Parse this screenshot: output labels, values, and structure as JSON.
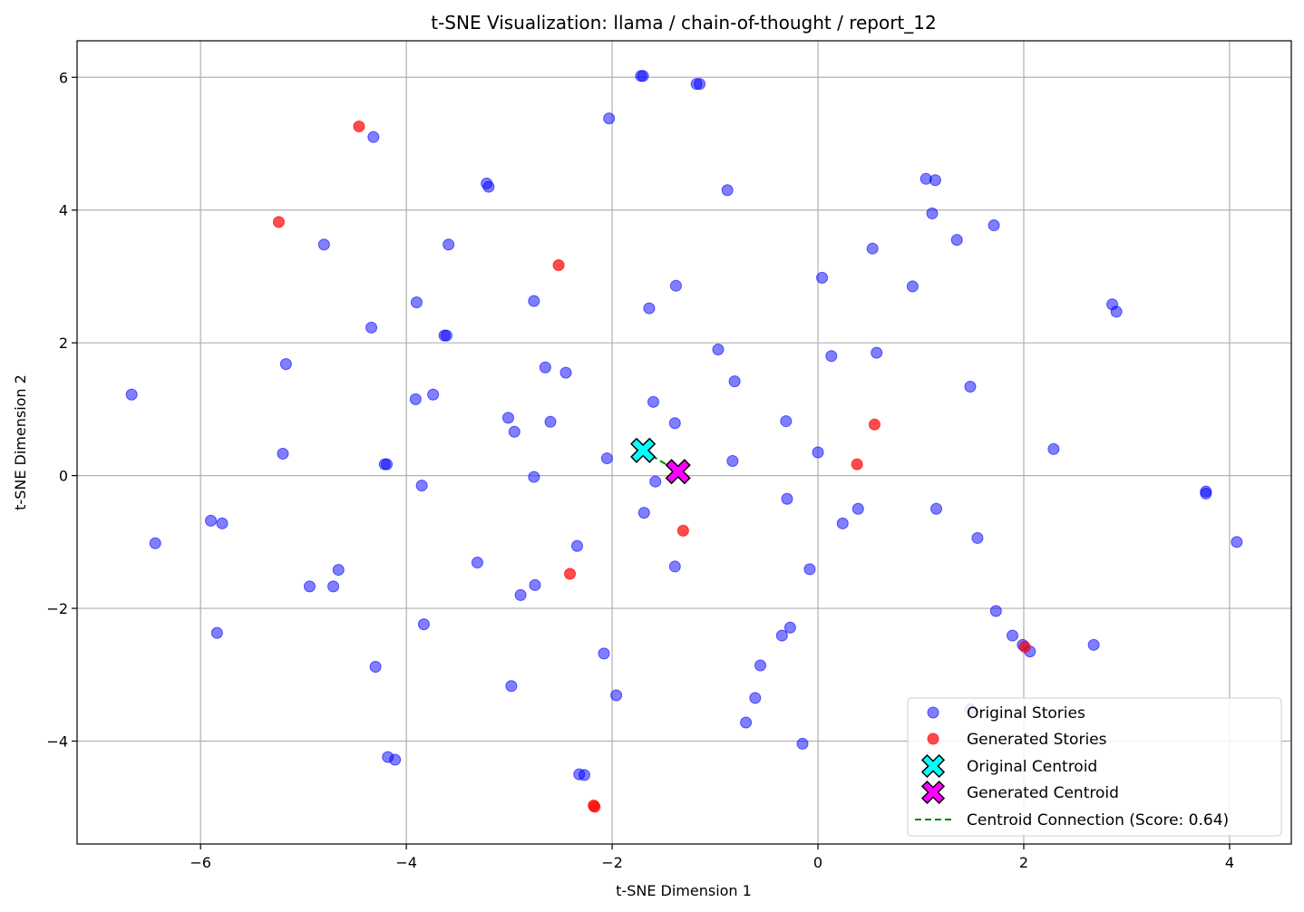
{
  "chart_data": {
    "type": "scatter",
    "title": "t-SNE Visualization: llama / chain-of-thought / report_12",
    "xlabel": "t-SNE Dimension 1",
    "ylabel": "t-SNE Dimension 2",
    "xlim": [
      -7.2,
      4.6
    ],
    "ylim": [
      -5.55,
      6.55
    ],
    "xticks": [
      -6,
      -4,
      -2,
      0,
      2,
      4
    ],
    "yticks": [
      -4,
      -2,
      0,
      2,
      4,
      6
    ],
    "xtick_labels": [
      "−6",
      "−4",
      "−2",
      "0",
      "2",
      "4"
    ],
    "ytick_labels": [
      "−4",
      "−2",
      "0",
      "2",
      "4",
      "6"
    ],
    "grid": true,
    "legend_position": "bottom-right",
    "colors": {
      "original": "#0000ff",
      "generated": "#ff0000",
      "original_centroid": "#00ffff",
      "generated_centroid": "#ff00ff",
      "connection": "#008000"
    },
    "series": [
      {
        "name": "Original Stories",
        "points": [
          [
            -1.7,
            6.02
          ],
          [
            -1.72,
            6.02
          ],
          [
            -1.15,
            5.9
          ],
          [
            -1.18,
            5.9
          ],
          [
            -2.03,
            5.38
          ],
          [
            -4.32,
            5.1
          ],
          [
            -3.22,
            4.4
          ],
          [
            -3.2,
            4.35
          ],
          [
            -0.88,
            4.3
          ],
          [
            1.05,
            4.47
          ],
          [
            1.14,
            4.45
          ],
          [
            1.11,
            3.95
          ],
          [
            1.71,
            3.77
          ],
          [
            1.35,
            3.55
          ],
          [
            -4.8,
            3.48
          ],
          [
            -3.59,
            3.48
          ],
          [
            0.53,
            3.42
          ],
          [
            0.04,
            2.98
          ],
          [
            -1.38,
            2.86
          ],
          [
            0.92,
            2.85
          ],
          [
            -2.76,
            2.63
          ],
          [
            -3.9,
            2.61
          ],
          [
            -1.64,
            2.52
          ],
          [
            2.86,
            2.58
          ],
          [
            2.9,
            2.47
          ],
          [
            -4.34,
            2.23
          ],
          [
            -3.63,
            2.11
          ],
          [
            -3.61,
            2.11
          ],
          [
            -0.97,
            1.9
          ],
          [
            0.57,
            1.85
          ],
          [
            0.13,
            1.8
          ],
          [
            -5.17,
            1.68
          ],
          [
            -2.65,
            1.63
          ],
          [
            -2.45,
            1.55
          ],
          [
            -0.81,
            1.42
          ],
          [
            1.48,
            1.34
          ],
          [
            -6.67,
            1.22
          ],
          [
            -3.74,
            1.22
          ],
          [
            -3.91,
            1.15
          ],
          [
            -1.6,
            1.11
          ],
          [
            -3.01,
            0.87
          ],
          [
            -0.31,
            0.82
          ],
          [
            -2.6,
            0.81
          ],
          [
            -1.39,
            0.79
          ],
          [
            -2.95,
            0.66
          ],
          [
            2.29,
            0.4
          ],
          [
            0.0,
            0.35
          ],
          [
            -5.2,
            0.33
          ],
          [
            -2.05,
            0.26
          ],
          [
            -0.83,
            0.22
          ],
          [
            -4.21,
            0.17
          ],
          [
            -4.19,
            0.17
          ],
          [
            -2.76,
            -0.02
          ],
          [
            -1.58,
            -0.09
          ],
          [
            -3.85,
            -0.15
          ],
          [
            3.77,
            -0.24
          ],
          [
            3.77,
            -0.27
          ],
          [
            -0.3,
            -0.35
          ],
          [
            0.39,
            -0.5
          ],
          [
            1.15,
            -0.5
          ],
          [
            -1.69,
            -0.56
          ],
          [
            -5.9,
            -0.68
          ],
          [
            -5.79,
            -0.72
          ],
          [
            0.24,
            -0.72
          ],
          [
            1.55,
            -0.94
          ],
          [
            -6.44,
            -1.02
          ],
          [
            4.07,
            -1.0
          ],
          [
            -2.34,
            -1.06
          ],
          [
            -3.31,
            -1.31
          ],
          [
            -4.66,
            -1.42
          ],
          [
            -1.39,
            -1.37
          ],
          [
            -0.08,
            -1.41
          ],
          [
            -4.94,
            -1.67
          ],
          [
            -4.71,
            -1.67
          ],
          [
            -2.75,
            -1.65
          ],
          [
            -2.89,
            -1.8
          ],
          [
            1.73,
            -2.04
          ],
          [
            -5.84,
            -2.37
          ],
          [
            -3.83,
            -2.24
          ],
          [
            -0.27,
            -2.29
          ],
          [
            -0.35,
            -2.41
          ],
          [
            1.89,
            -2.41
          ],
          [
            1.99,
            -2.55
          ],
          [
            2.68,
            -2.55
          ],
          [
            2.06,
            -2.65
          ],
          [
            -2.08,
            -2.68
          ],
          [
            -4.3,
            -2.88
          ],
          [
            -0.56,
            -2.86
          ],
          [
            -2.98,
            -3.17
          ],
          [
            -1.96,
            -3.31
          ],
          [
            -0.61,
            -3.35
          ],
          [
            1.48,
            -3.52
          ],
          [
            -0.7,
            -3.72
          ],
          [
            -0.15,
            -4.04
          ],
          [
            -4.18,
            -4.24
          ],
          [
            -4.11,
            -4.28
          ],
          [
            -2.32,
            -4.5
          ],
          [
            -2.27,
            -4.51
          ]
        ]
      },
      {
        "name": "Generated Stories",
        "points": [
          [
            -4.46,
            5.26
          ],
          [
            -5.24,
            3.82
          ],
          [
            -2.52,
            3.17
          ],
          [
            0.55,
            0.77
          ],
          [
            0.38,
            0.17
          ],
          [
            -1.31,
            -0.83
          ],
          [
            -2.41,
            -1.48
          ],
          [
            2.01,
            -2.58
          ],
          [
            -2.18,
            -4.97
          ],
          [
            -2.17,
            -4.99
          ]
        ]
      },
      {
        "name": "Original Centroid",
        "points": [
          [
            -1.7,
            0.38
          ]
        ]
      },
      {
        "name": "Generated Centroid",
        "points": [
          [
            -1.36,
            0.06
          ]
        ]
      },
      {
        "name": "Centroid Connection (Score: 0.64)",
        "points": [
          [
            -1.7,
            0.38
          ],
          [
            -1.36,
            0.06
          ]
        ]
      }
    ]
  }
}
